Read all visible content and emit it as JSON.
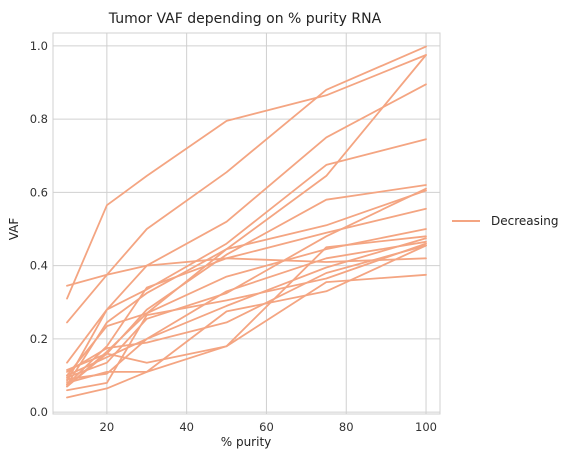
{
  "chart_data": {
    "type": "line",
    "title": "Tumor VAF depending on % purity RNA",
    "xlabel": "% purity",
    "ylabel": "VAF",
    "x": [
      10,
      20,
      30,
      50,
      75,
      100
    ],
    "xlim": [
      6.5,
      103.5
    ],
    "ylim": [
      -0.005,
      1.035
    ],
    "xticks": [
      20,
      40,
      60,
      80,
      100
    ],
    "yticks": [
      0.0,
      0.2,
      0.4,
      0.6,
      0.8,
      1.0
    ],
    "xtick_labels": [
      "20",
      "40",
      "60",
      "80",
      "100"
    ],
    "ytick_labels": [
      "0.0",
      "0.2",
      "0.4",
      "0.6",
      "0.8",
      "1.0"
    ],
    "grid": true,
    "line_color": "#f4a582",
    "legend": {
      "placement": "center-right-outside",
      "entries": [
        "Decreasing"
      ]
    },
    "series": [
      {
        "values": [
          0.31,
          0.565,
          0.645,
          0.795,
          0.865,
          0.975
        ]
      },
      {
        "values": [
          0.245,
          0.375,
          0.5,
          0.655,
          0.88,
          0.998
        ]
      },
      {
        "values": [
          0.345,
          0.375,
          0.4,
          0.42,
          0.41,
          0.42
        ]
      },
      {
        "values": [
          0.135,
          0.28,
          0.4,
          0.52,
          0.75,
          0.895
        ]
      },
      {
        "values": [
          0.085,
          0.28,
          0.335,
          0.46,
          0.675,
          0.745
        ]
      },
      {
        "values": [
          0.075,
          0.245,
          0.325,
          0.445,
          0.645,
          0.975
        ]
      },
      {
        "values": [
          0.115,
          0.16,
          0.28,
          0.43,
          0.58,
          0.62
        ]
      },
      {
        "values": [
          0.1,
          0.235,
          0.27,
          0.445,
          0.51,
          0.605
        ]
      },
      {
        "values": [
          0.075,
          0.18,
          0.34,
          0.42,
          0.49,
          0.555
        ]
      },
      {
        "values": [
          0.07,
          0.165,
          0.27,
          0.37,
          0.445,
          0.5
        ]
      },
      {
        "values": [
          0.095,
          0.135,
          0.255,
          0.325,
          0.48,
          0.61
        ]
      },
      {
        "values": [
          0.09,
          0.105,
          0.2,
          0.33,
          0.42,
          0.465
        ]
      },
      {
        "values": [
          0.1,
          0.15,
          0.2,
          0.29,
          0.395,
          0.475
        ]
      },
      {
        "values": [
          0.11,
          0.175,
          0.19,
          0.245,
          0.38,
          0.455
        ]
      },
      {
        "values": [
          0.07,
          0.16,
          0.135,
          0.18,
          0.45,
          0.48
        ]
      },
      {
        "values": [
          0.08,
          0.11,
          0.11,
          0.275,
          0.33,
          0.455
        ]
      },
      {
        "values": [
          0.04,
          0.065,
          0.11,
          0.18,
          0.355,
          0.375
        ]
      },
      {
        "values": [
          0.06,
          0.08,
          0.265,
          0.305,
          0.365,
          0.46
        ]
      }
    ]
  }
}
